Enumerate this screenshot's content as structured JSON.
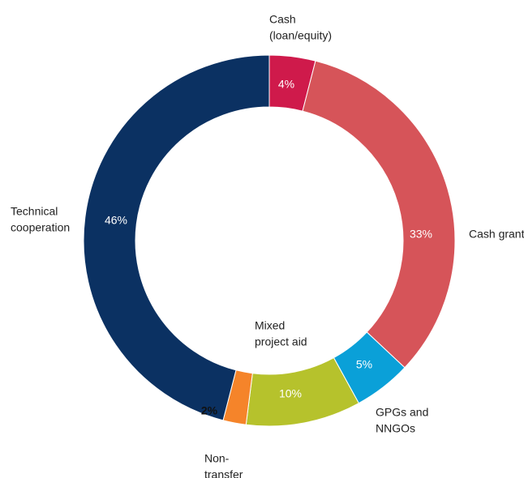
{
  "chart_data": {
    "type": "donut",
    "categories": [
      [
        "Cash",
        "(loan/equity)"
      ],
      [
        "Cash grant"
      ],
      [
        "GPGs and",
        "NNGOs"
      ],
      [
        "Mixed",
        "project aid"
      ],
      [
        "Non-",
        "transfer"
      ],
      [
        "Technical",
        "cooperation"
      ]
    ],
    "values": [
      4,
      33,
      5,
      10,
      2,
      46
    ],
    "value_labels": [
      "4%",
      "33%",
      "5%",
      "10%",
      "2%",
      "46%"
    ],
    "colors": [
      "#cf1a4b",
      "#d65459",
      "#0aa0d8",
      "#b6c22c",
      "#f5842a",
      "#0b3162"
    ]
  }
}
